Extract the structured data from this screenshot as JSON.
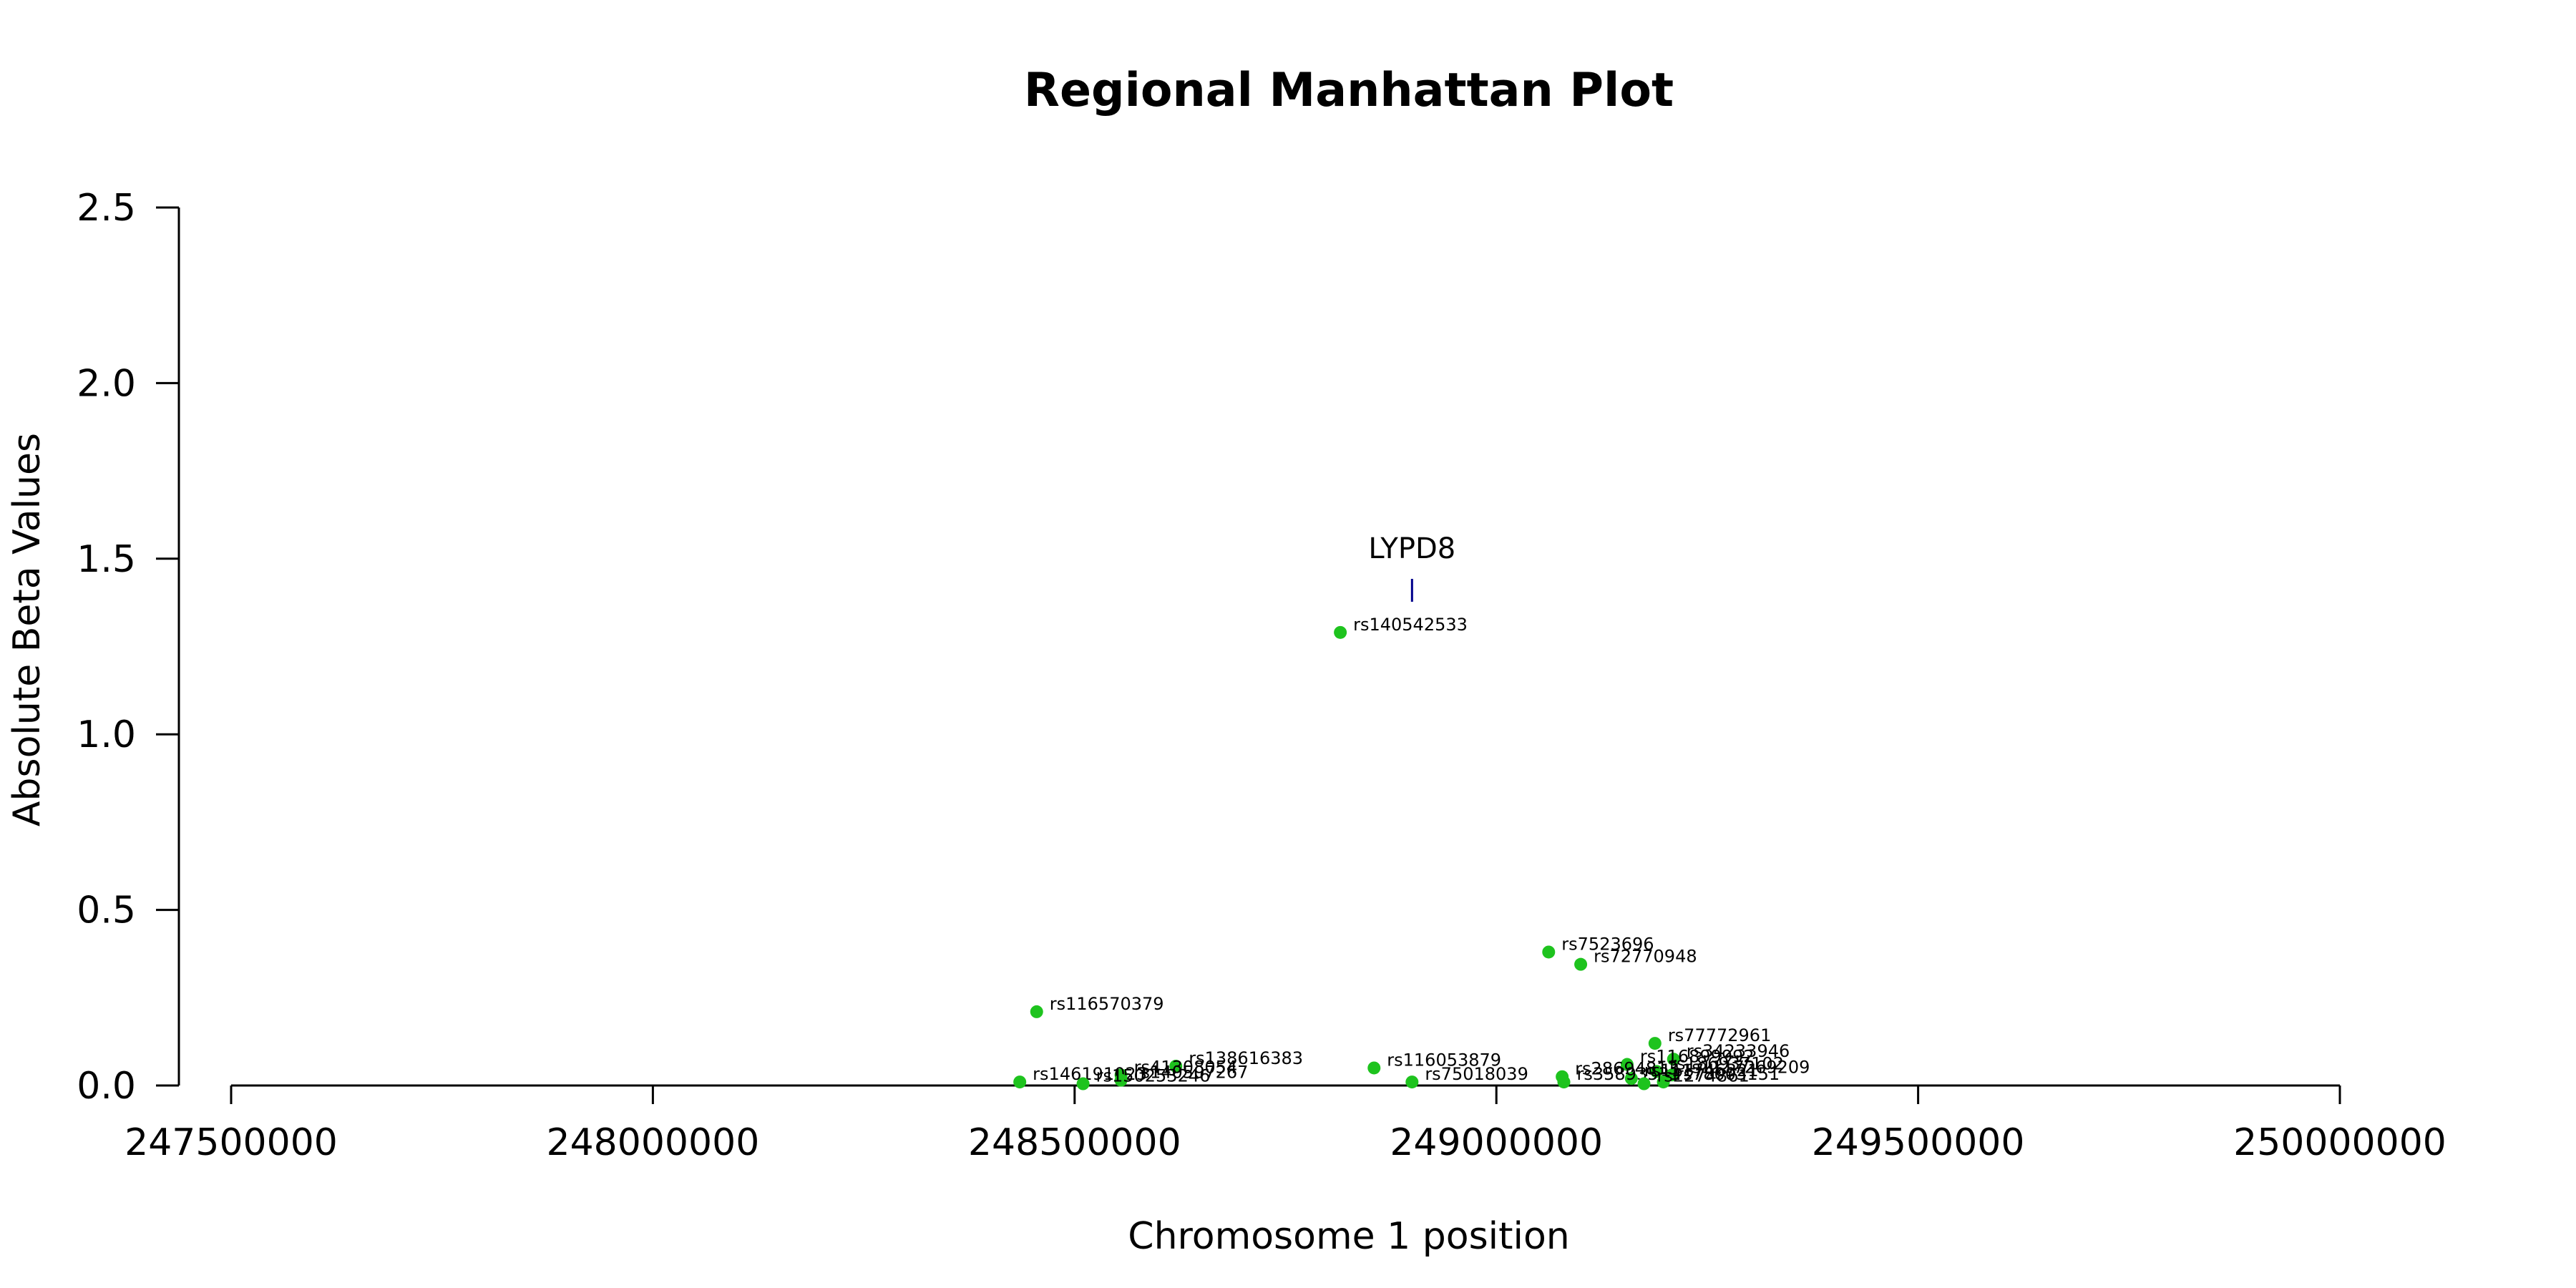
{
  "chart_data": {
    "type": "scatter",
    "title": "Regional Manhattan Plot",
    "xlabel": "Chromosome 1 position",
    "ylabel": "Absolute Beta Values",
    "xlim": [
      247500000,
      250000000
    ],
    "ylim": [
      0,
      2.5
    ],
    "x_ticks": [
      247500000,
      248000000,
      248500000,
      249000000,
      249500000,
      250000000
    ],
    "x_tick_labels": [
      "247500000",
      "248000000",
      "248500000",
      "249000000",
      "249500000",
      "250000000"
    ],
    "y_ticks": [
      0,
      0.5,
      1,
      1.5,
      2,
      2.5
    ],
    "y_tick_labels": [
      "0.0",
      "0.5",
      "1.0",
      "1.5",
      "2.0",
      "2.5"
    ],
    "grid": false,
    "point_color": "#1ec31e",
    "points": [
      {
        "id": "rs140542533",
        "x": 248815000,
        "y": 1.29
      },
      {
        "id": "rs7523696",
        "x": 249062000,
        "y": 0.38
      },
      {
        "id": "rs72770948",
        "x": 249100000,
        "y": 0.345
      },
      {
        "id": "rs116570379",
        "x": 248455000,
        "y": 0.21
      },
      {
        "id": "rs77772961",
        "x": 249188000,
        "y": 0.12
      },
      {
        "id": "rs34233946",
        "x": 249210000,
        "y": 0.075
      },
      {
        "id": "rs138616383",
        "x": 248620000,
        "y": 0.055
      },
      {
        "id": "rs116053879",
        "x": 248855000,
        "y": 0.05
      },
      {
        "id": "rs116899992",
        "x": 249155000,
        "y": 0.06
      },
      {
        "id": "rs41308054",
        "x": 248555000,
        "y": 0.03
      },
      {
        "id": "rs186937102",
        "x": 249190000,
        "y": 0.04
      },
      {
        "id": "rs1117269209",
        "x": 249208000,
        "y": 0.03
      },
      {
        "id": "rs28694813",
        "x": 249078000,
        "y": 0.025
      },
      {
        "id": "rs111746321",
        "x": 249160000,
        "y": 0.02
      },
      {
        "id": "rs146191023",
        "x": 248435000,
        "y": 0.01
      },
      {
        "id": "rs140507267",
        "x": 248555000,
        "y": 0.015
      },
      {
        "id": "rs75018039",
        "x": 248900000,
        "y": 0.01
      },
      {
        "id": "rs35893531",
        "x": 249080000,
        "y": 0.01
      },
      {
        "id": "rs78003151",
        "x": 249198000,
        "y": 0.01
      },
      {
        "id": "rs150253246",
        "x": 248510000,
        "y": 0.005
      },
      {
        "id": "rs2274861",
        "x": 249175000,
        "y": 0.005
      }
    ],
    "genes": [
      {
        "name": "LYPD8",
        "x": 248900000,
        "y": 1.41,
        "color": "#00008b"
      }
    ]
  }
}
